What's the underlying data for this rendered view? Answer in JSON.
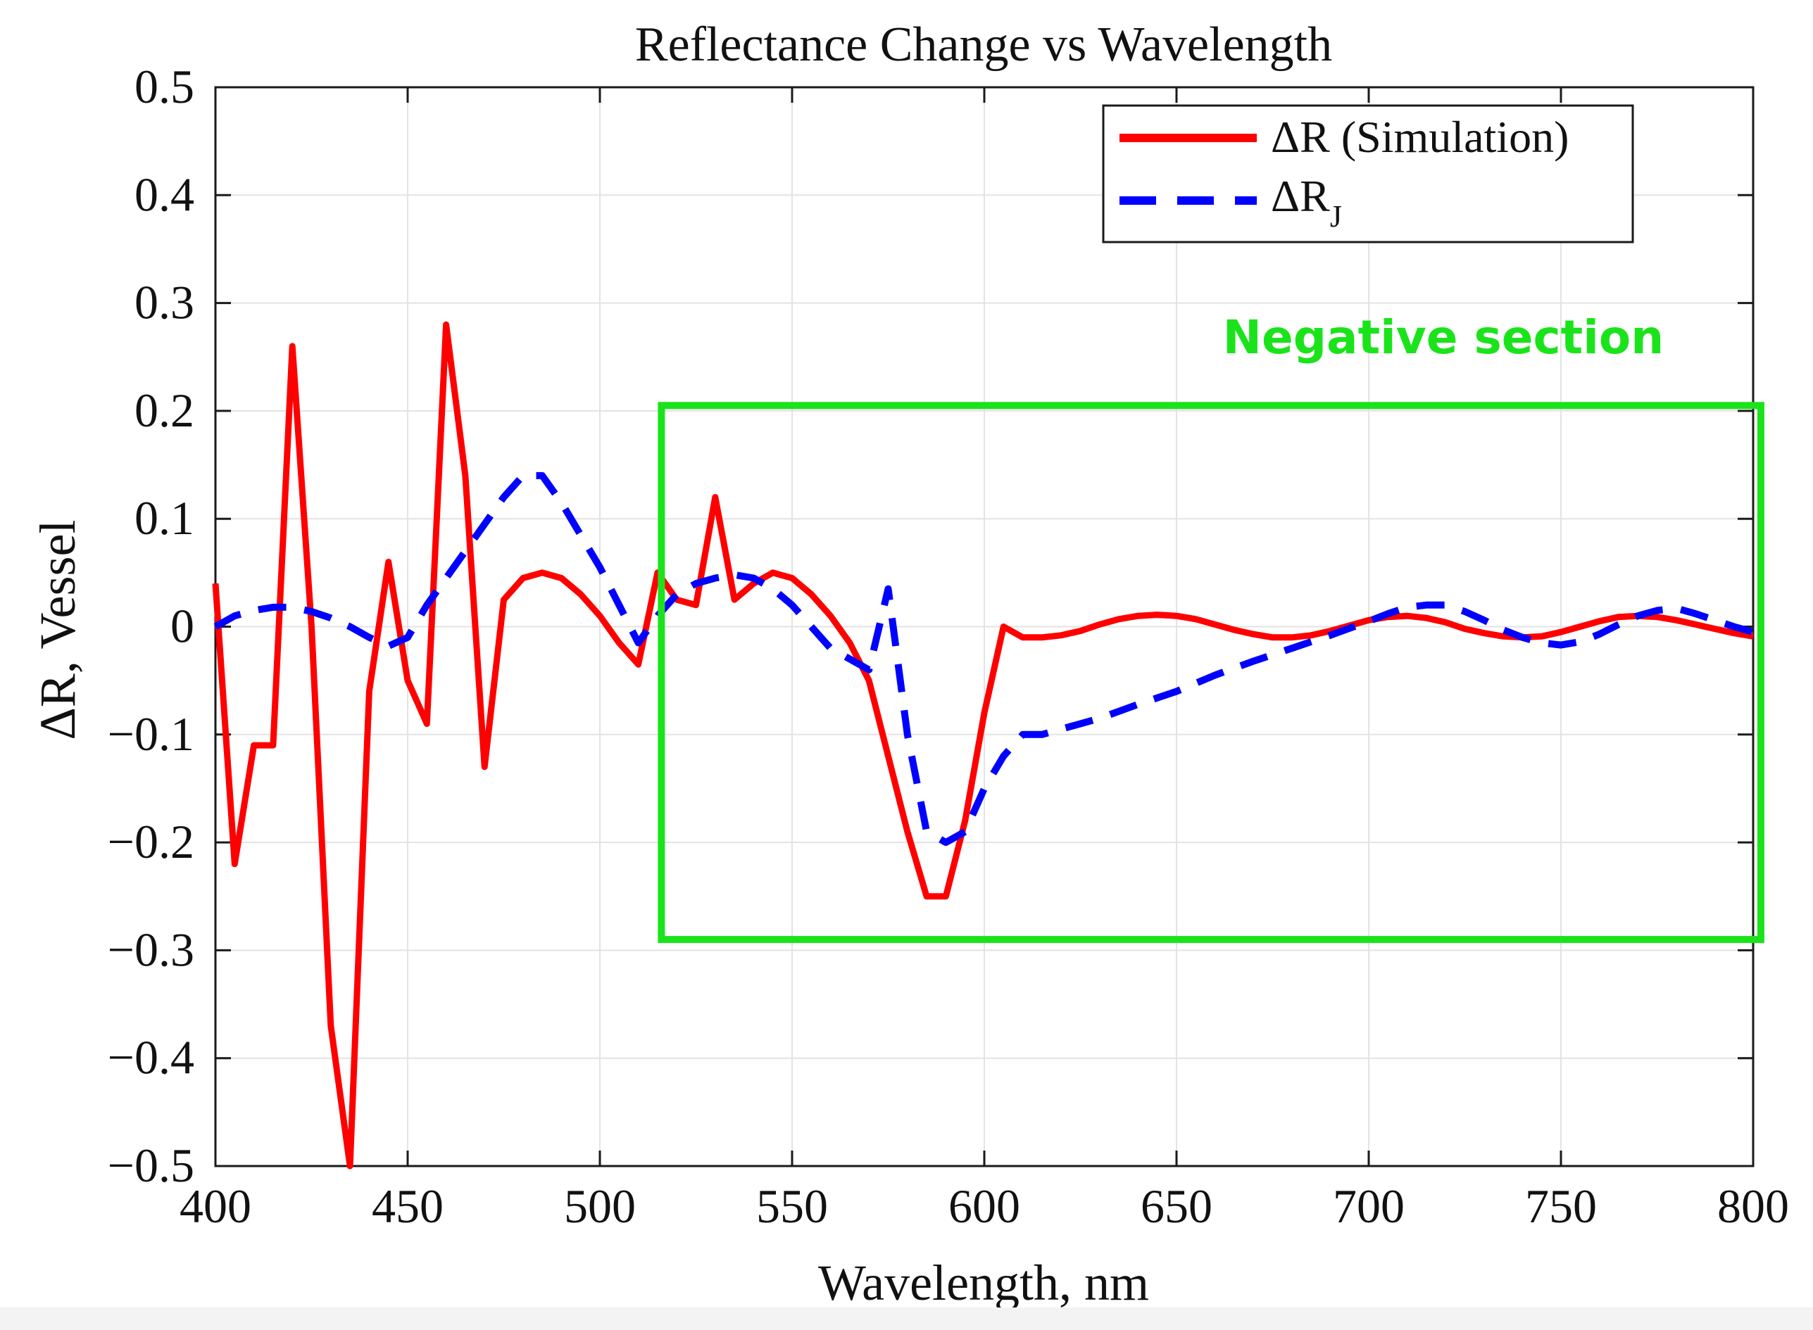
{
  "chart_data": {
    "type": "line",
    "title": "Reflectance Change vs Wavelength",
    "xlabel": "Wavelength, nm",
    "ylabel": "ΔR, Vessel",
    "xlim": [
      400,
      800
    ],
    "ylim": [
      -0.5,
      0.5
    ],
    "grid": true,
    "x_ticks": [
      {
        "value": 400,
        "label": "400"
      },
      {
        "value": 450,
        "label": "450"
      },
      {
        "value": 500,
        "label": "500"
      },
      {
        "value": 550,
        "label": "550"
      },
      {
        "value": 600,
        "label": "600"
      },
      {
        "value": 650,
        "label": "650"
      },
      {
        "value": 700,
        "label": "700"
      },
      {
        "value": 750,
        "label": "750"
      },
      {
        "value": 800,
        "label": "800"
      }
    ],
    "y_ticks": [
      {
        "value": 0.5,
        "label": "0.5"
      },
      {
        "value": 0.4,
        "label": "0.4"
      },
      {
        "value": 0.3,
        "label": "0.3"
      },
      {
        "value": 0.2,
        "label": "0.2"
      },
      {
        "value": 0.1,
        "label": "0.1"
      },
      {
        "value": 0,
        "label": "0"
      },
      {
        "value": -0.1,
        "label": "−0.1"
      },
      {
        "value": -0.2,
        "label": "−0.2"
      },
      {
        "value": -0.3,
        "label": "−0.3"
      },
      {
        "value": -0.4,
        "label": "−0.4"
      },
      {
        "value": -0.5,
        "label": "−0.5"
      }
    ],
    "legend_position": "top-right",
    "series": [
      {
        "name": "ΔR (Simulation)",
        "legend_text": "ΔR (Simulation)",
        "style": "solid",
        "color": "#ff0000",
        "x": [
          400,
          405,
          410,
          415,
          420,
          425,
          430,
          435,
          440,
          445,
          450,
          455,
          460,
          465,
          470,
          475,
          480,
          485,
          490,
          495,
          500,
          505,
          510,
          515,
          520,
          525,
          530,
          535,
          540,
          545,
          550,
          555,
          560,
          565,
          570,
          575,
          580,
          585,
          590,
          595,
          600,
          605,
          610,
          615,
          620,
          625,
          630,
          635,
          640,
          645,
          650,
          655,
          660,
          665,
          670,
          675,
          680,
          685,
          690,
          695,
          700,
          705,
          710,
          715,
          720,
          725,
          730,
          735,
          740,
          745,
          750,
          755,
          760,
          765,
          770,
          775,
          780,
          785,
          790,
          795,
          800
        ],
        "y": [
          0.04,
          -0.22,
          -0.11,
          -0.11,
          0.26,
          0.0,
          -0.37,
          -0.5,
          -0.06,
          0.06,
          -0.05,
          -0.09,
          0.28,
          0.14,
          -0.13,
          0.025,
          0.045,
          0.05,
          0.045,
          0.03,
          0.01,
          -0.015,
          -0.035,
          0.05,
          0.025,
          0.02,
          0.12,
          0.025,
          0.04,
          0.05,
          0.045,
          0.03,
          0.01,
          -0.015,
          -0.05,
          -0.12,
          -0.19,
          -0.25,
          -0.25,
          -0.18,
          -0.08,
          0.0,
          -0.01,
          -0.01,
          -0.008,
          -0.004,
          0.002,
          0.007,
          0.01,
          0.011,
          0.01,
          0.007,
          0.002,
          -0.003,
          -0.007,
          -0.01,
          -0.01,
          -0.008,
          -0.004,
          0.001,
          0.006,
          0.009,
          0.01,
          0.008,
          0.004,
          -0.002,
          -0.006,
          -0.009,
          -0.01,
          -0.009,
          -0.005,
          0.0,
          0.005,
          0.009,
          0.01,
          0.009,
          0.006,
          0.002,
          -0.002,
          -0.006,
          -0.009
        ]
      },
      {
        "name": "ΔR_J",
        "legend_text": "ΔR",
        "legend_subscript": "J",
        "style": "dashed",
        "color": "#0000ff",
        "x": [
          400,
          405,
          410,
          415,
          420,
          425,
          430,
          435,
          440,
          445,
          450,
          455,
          460,
          465,
          470,
          475,
          480,
          485,
          490,
          495,
          500,
          505,
          510,
          515,
          520,
          525,
          530,
          535,
          540,
          545,
          550,
          555,
          560,
          565,
          570,
          575,
          580,
          585,
          590,
          595,
          600,
          605,
          610,
          615,
          620,
          630,
          640,
          650,
          660,
          670,
          680,
          690,
          700,
          705,
          710,
          715,
          720,
          725,
          730,
          735,
          740,
          745,
          750,
          755,
          760,
          765,
          770,
          775,
          780,
          785,
          790,
          795,
          800
        ],
        "y": [
          0.0,
          0.01,
          0.015,
          0.018,
          0.018,
          0.014,
          0.008,
          0.0,
          -0.01,
          -0.018,
          -0.01,
          0.02,
          0.045,
          0.07,
          0.095,
          0.12,
          0.14,
          0.14,
          0.115,
          0.085,
          0.055,
          0.02,
          -0.015,
          0.01,
          0.03,
          0.04,
          0.045,
          0.048,
          0.045,
          0.035,
          0.02,
          0.0,
          -0.02,
          -0.03,
          -0.04,
          0.035,
          -0.1,
          -0.19,
          -0.2,
          -0.19,
          -0.15,
          -0.12,
          -0.1,
          -0.1,
          -0.095,
          -0.085,
          -0.072,
          -0.06,
          -0.045,
          -0.032,
          -0.02,
          -0.008,
          0.005,
          0.012,
          0.018,
          0.02,
          0.02,
          0.014,
          0.006,
          -0.003,
          -0.01,
          -0.015,
          -0.017,
          -0.014,
          -0.007,
          0.002,
          0.01,
          0.015,
          0.017,
          0.012,
          0.006,
          0.0,
          -0.005
        ]
      }
    ],
    "annotations": [
      {
        "id": "negative-section",
        "text": "Negative section",
        "color": "#1be31b",
        "x_range": [
          516,
          802
        ],
        "y_range": [
          -0.29,
          0.205
        ]
      }
    ]
  }
}
